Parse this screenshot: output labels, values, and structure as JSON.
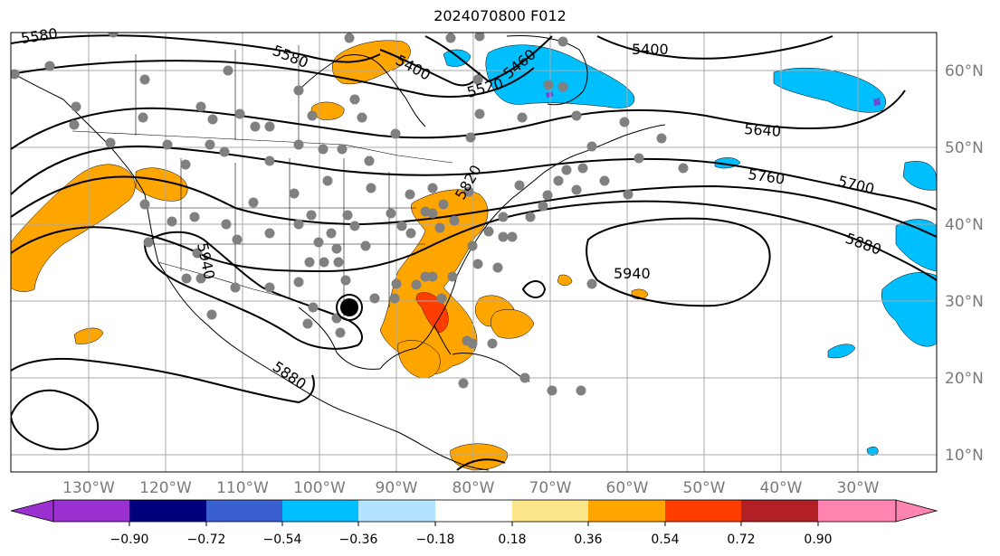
{
  "title": "2024070800 F012",
  "map": {
    "lon_labels": [
      "130°W",
      "120°W",
      "110°W",
      "100°W",
      "90°W",
      "80°W",
      "70°W",
      "60°W",
      "50°W",
      "40°W",
      "30°W"
    ],
    "lat_labels": [
      "60°N",
      "50°N",
      "40°N",
      "30°N",
      "20°N",
      "10°N"
    ],
    "contour_labels": [
      "5580",
      "5580",
      "5400",
      "5460",
      "5520",
      "5400",
      "5640",
      "5700",
      "5760",
      "5880",
      "5940",
      "5880",
      "5940",
      "5820"
    ],
    "colorbar_ticks": [
      "−0.90",
      "−0.72",
      "−0.54",
      "−0.36",
      "−0.18",
      "0.18",
      "0.36",
      "0.54",
      "0.72",
      "0.90"
    ],
    "colorbar_colors": [
      "#9b30d0",
      "#00007d",
      "#3a5fd0",
      "#00bfff",
      "#b3e3ff",
      "#ffffff",
      "#fde68a",
      "#ffa500",
      "#ff3d00",
      "#b21f24",
      "#ff85b0"
    ],
    "fill_colors": {
      "orange": "#ffa500",
      "red": "#ff3d00",
      "blue": "#00bfff",
      "purple": "#6a4fd0"
    },
    "station_color": "#808080"
  }
}
